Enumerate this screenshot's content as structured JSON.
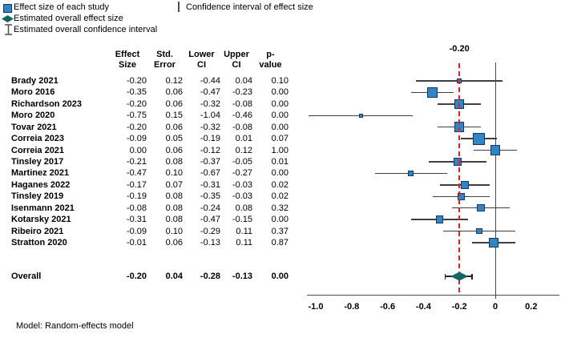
{
  "legend": {
    "items": [
      {
        "icon": "study-square-icon",
        "label": "Effect size of each study"
      },
      {
        "icon": "study-ci-line-icon",
        "label": "Confidence interval of effect size"
      },
      {
        "icon": "overall-diamond-icon",
        "label": "Estimated overall effect size"
      },
      {
        "icon": "overall-ci-icon",
        "label": "Estimated overall confidence interval"
      }
    ]
  },
  "table": {
    "columns": [
      {
        "line1": "Effect",
        "line2": "Size"
      },
      {
        "line1": "Std.",
        "line2": "Error"
      },
      {
        "line1": "Lower",
        "line2": "CI"
      },
      {
        "line1": "Upper",
        "line2": "CI"
      },
      {
        "line1": "p-",
        "line2": "value"
      }
    ]
  },
  "chart_data": {
    "type": "forest",
    "reference_value_label": "-0.20",
    "reference_line_x": -0.2,
    "zero_line_x": 0,
    "x_ticks": [
      -1.0,
      -0.8,
      -0.6,
      -0.4,
      -0.2,
      0,
      0.2
    ],
    "xlim": [
      -1.06,
      0.36
    ],
    "studies": [
      {
        "name": "Brady 2021",
        "effect": -0.2,
        "se": 0.12,
        "lower": -0.44,
        "upper": 0.04,
        "p": 0.1
      },
      {
        "name": "Moro 2016",
        "effect": -0.35,
        "se": 0.06,
        "lower": -0.47,
        "upper": -0.23,
        "p": 0.0
      },
      {
        "name": "Richardson 2023",
        "effect": -0.2,
        "se": 0.06,
        "lower": -0.32,
        "upper": -0.08,
        "p": 0.0
      },
      {
        "name": "Moro 2020",
        "effect": -0.75,
        "se": 0.15,
        "lower": -1.04,
        "upper": -0.46,
        "p": 0.0
      },
      {
        "name": "Tovar 2021",
        "effect": -0.2,
        "se": 0.06,
        "lower": -0.32,
        "upper": -0.08,
        "p": 0.0
      },
      {
        "name": "Correia 2023",
        "effect": -0.09,
        "se": 0.05,
        "lower": -0.19,
        "upper": 0.01,
        "p": 0.07
      },
      {
        "name": "Correia 2021",
        "effect": 0.0,
        "se": 0.06,
        "lower": -0.12,
        "upper": 0.12,
        "p": 1.0
      },
      {
        "name": "Tinsley 2017",
        "effect": -0.21,
        "se": 0.08,
        "lower": -0.37,
        "upper": -0.05,
        "p": 0.01
      },
      {
        "name": "Martinez 2021",
        "effect": -0.47,
        "se": 0.1,
        "lower": -0.67,
        "upper": -0.27,
        "p": 0.0
      },
      {
        "name": "Haganes 2022",
        "effect": -0.17,
        "se": 0.07,
        "lower": -0.31,
        "upper": -0.03,
        "p": 0.02
      },
      {
        "name": "Tinsley 2019",
        "effect": -0.19,
        "se": 0.08,
        "lower": -0.35,
        "upper": -0.03,
        "p": 0.02
      },
      {
        "name": "Isenmann 2021",
        "effect": -0.08,
        "se": 0.08,
        "lower": -0.24,
        "upper": 0.08,
        "p": 0.32
      },
      {
        "name": "Kotarsky 2021",
        "effect": -0.31,
        "se": 0.08,
        "lower": -0.47,
        "upper": -0.15,
        "p": 0.0
      },
      {
        "name": "Ribeiro 2021",
        "effect": -0.09,
        "se": 0.1,
        "lower": -0.29,
        "upper": 0.11,
        "p": 0.37
      },
      {
        "name": "Stratton 2020",
        "effect": -0.01,
        "se": 0.06,
        "lower": -0.13,
        "upper": 0.11,
        "p": 0.87
      }
    ],
    "overall": {
      "name": "Overall",
      "effect": -0.2,
      "se": 0.04,
      "lower": -0.28,
      "upper": -0.13,
      "p": 0.0
    },
    "colors": {
      "study_marker_fill": "#2E86C8",
      "study_marker_border": "#17375D",
      "overall_diamond": "#11675E",
      "reference_line": "#EC1C24",
      "ci_line": "#3F3F3F",
      "overall_ci_line": "#222222",
      "axis_line": "#4D4D4D"
    }
  },
  "footer": {
    "model_note": "Model: Random-effects model"
  }
}
